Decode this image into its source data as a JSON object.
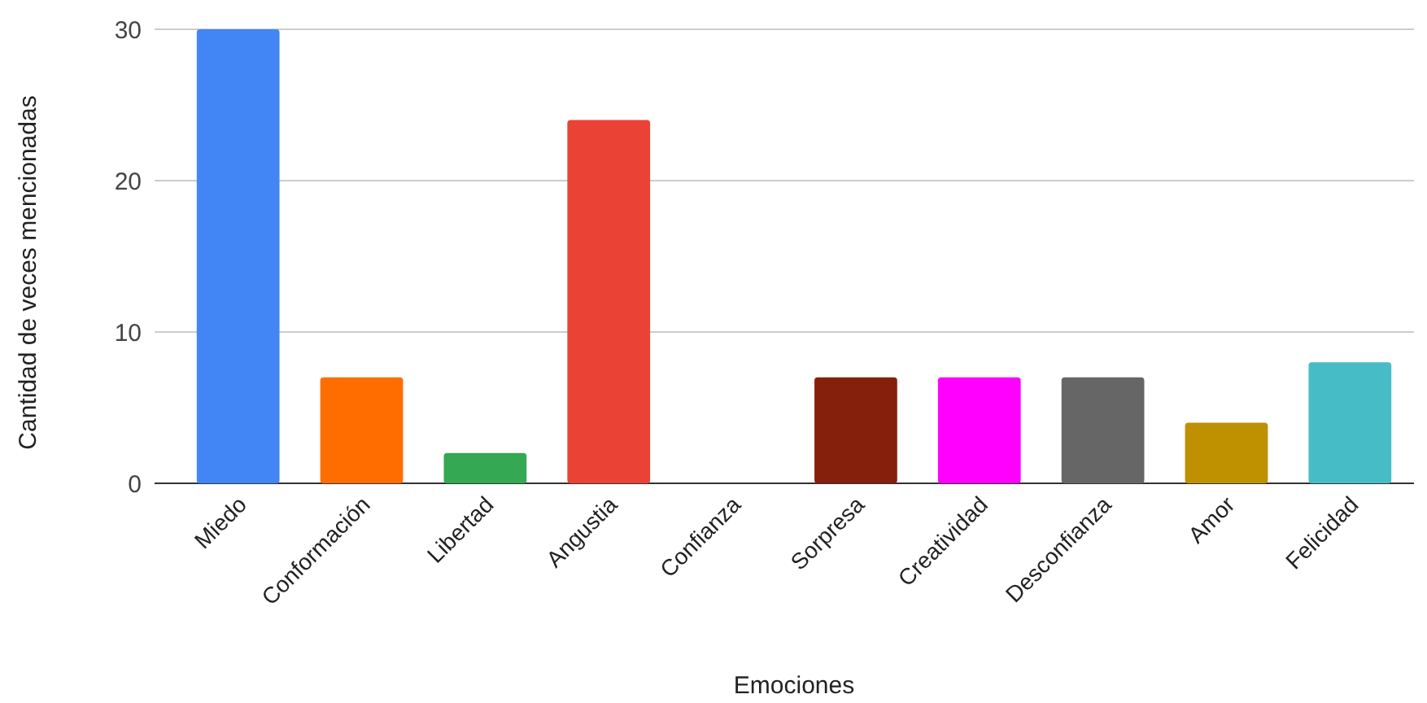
{
  "chart_data": {
    "type": "bar",
    "xlabel": "Emociones",
    "ylabel": "Cantidad de veces mencionadas",
    "categories": [
      "Miedo",
      "Conformación",
      "Libertad",
      "Angustia",
      "Confianza",
      "Sorpresa",
      "Creatividad",
      "Desconfianza",
      "Amor",
      "Felicidad"
    ],
    "values": [
      30,
      7,
      2,
      24,
      0,
      7,
      7,
      7,
      4,
      8
    ],
    "colors": [
      "#4285f4",
      "#ff6d01",
      "#34a853",
      "#ea4335",
      "#fbbc04",
      "#85200c",
      "#ff00ff",
      "#666666",
      "#bf9000",
      "#46bdc6"
    ],
    "ylim": [
      0,
      30
    ],
    "yticks": [
      0,
      10,
      20,
      30
    ],
    "grid": "y"
  }
}
